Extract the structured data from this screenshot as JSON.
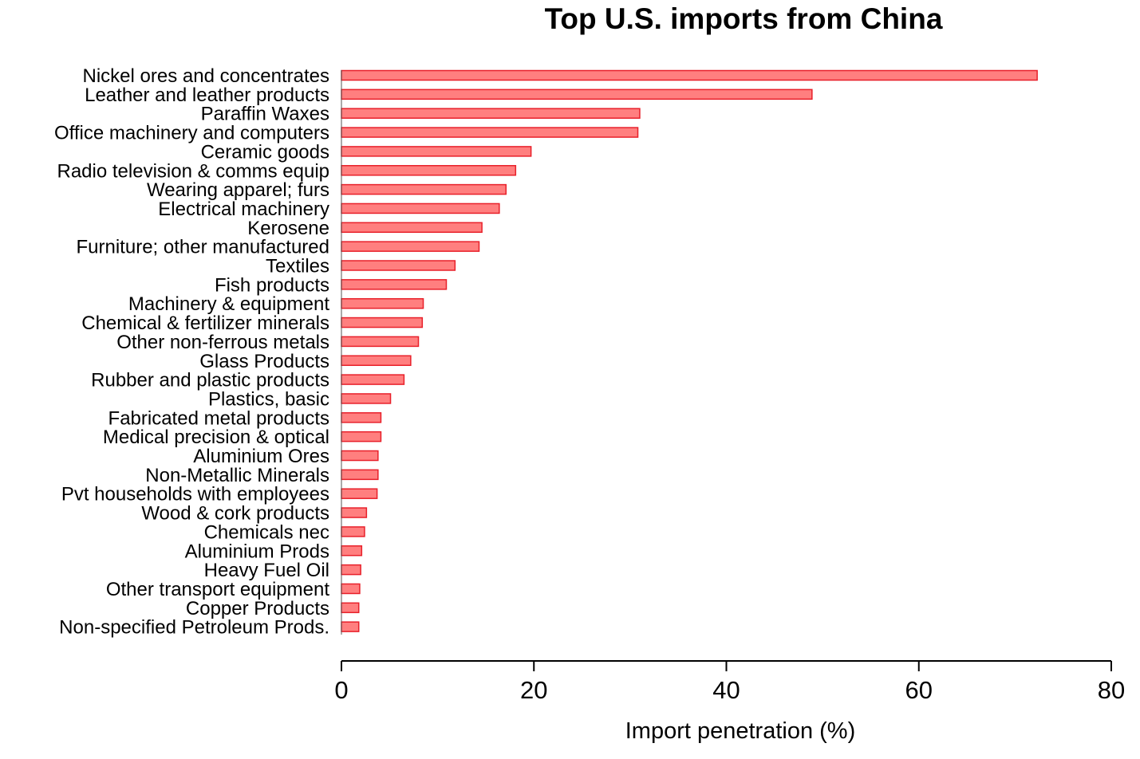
{
  "chart_data": {
    "type": "bar",
    "orientation": "horizontal",
    "title": "Top U.S. imports from China",
    "xlabel": "Import penetration (%)",
    "ylabel": "",
    "xlim": [
      0,
      80
    ],
    "xticks": [
      0,
      20,
      40,
      60,
      80
    ],
    "grid": false,
    "bar_fill": "#ff7f7f",
    "bar_stroke": "#e8202a",
    "categories": [
      "Nickel ores and concentrates",
      "Leather and leather products",
      "Paraffin Waxes",
      "Office machinery and computers",
      "Ceramic goods",
      "Radio television & comms equip",
      "Wearing apparel; furs",
      "Electrical machinery",
      "Kerosene",
      "Furniture; other manufactured",
      "Textiles",
      "Fish products",
      "Machinery & equipment",
      "Chemical & fertilizer minerals",
      "Other non-ferrous metals",
      "Glass Products",
      "Rubber and plastic products",
      "Plastics, basic",
      "Fabricated metal products",
      "Medical precision & optical",
      "Aluminium Ores",
      "Non-Metallic Minerals",
      "Pvt households with employees",
      "Wood & cork products",
      "Chemicals nec",
      "Aluminium Prods",
      "Heavy Fuel Oil",
      "Other transport equipment",
      "Copper Products",
      "Non-specified Petroleum Prods."
    ],
    "values": [
      72.3,
      48.9,
      31.0,
      30.8,
      19.7,
      18.1,
      17.1,
      16.4,
      14.6,
      14.3,
      11.8,
      10.9,
      8.5,
      8.4,
      8.0,
      7.2,
      6.5,
      5.1,
      4.1,
      4.1,
      3.8,
      3.8,
      3.7,
      2.6,
      2.4,
      2.1,
      2.0,
      1.9,
      1.8,
      1.8
    ]
  }
}
